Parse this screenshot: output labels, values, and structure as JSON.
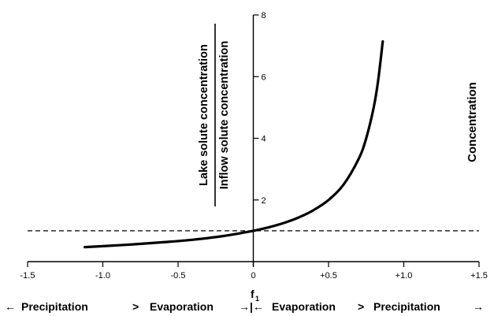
{
  "chart_data": {
    "type": "line",
    "title": "",
    "xlabel": "f",
    "xlabel_subscript": "1",
    "ylabel_numerator": "Lake solute concentration",
    "ylabel_denominator": "Inflow solute concentration",
    "right_label": "Concentration",
    "xlim": [
      -1.5,
      1.5
    ],
    "ylim": [
      0,
      8
    ],
    "x_ticks": [
      -1.5,
      -1.0,
      -0.5,
      0,
      0.5,
      1.0,
      1.5
    ],
    "x_tick_labels": [
      "-1.5",
      "-1.0",
      "-0.5",
      "0",
      "+0.5",
      "+1.0",
      "+1.5"
    ],
    "y_ticks": [
      2,
      4,
      6,
      8
    ],
    "y_tick_labels": [
      "2",
      "4",
      "6",
      "8"
    ],
    "reference_line": {
      "y": 1,
      "style": "dashed"
    },
    "series": [
      {
        "x": [
          -1.12,
          -1.0,
          -0.8,
          -0.6,
          -0.4,
          -0.2,
          0,
          0.1,
          0.2,
          0.3,
          0.4,
          0.5,
          0.6,
          0.7,
          0.75,
          0.8,
          0.83,
          0.86
        ],
        "values": [
          0.47,
          0.5,
          0.56,
          0.63,
          0.71,
          0.83,
          1.0,
          1.11,
          1.25,
          1.43,
          1.67,
          2.0,
          2.5,
          3.33,
          4.0,
          5.0,
          5.88,
          7.14
        ]
      }
    ],
    "grid": false
  },
  "bottom_labels": {
    "left_arrow": "←",
    "left_word1": "Precipitation",
    "left_gt": ">",
    "left_word2": "Evaporation",
    "center_arrows": "→|←",
    "right_word1": "Evaporation",
    "right_gt": ">",
    "right_word2": "Precipitation",
    "right_arrow": "→"
  }
}
